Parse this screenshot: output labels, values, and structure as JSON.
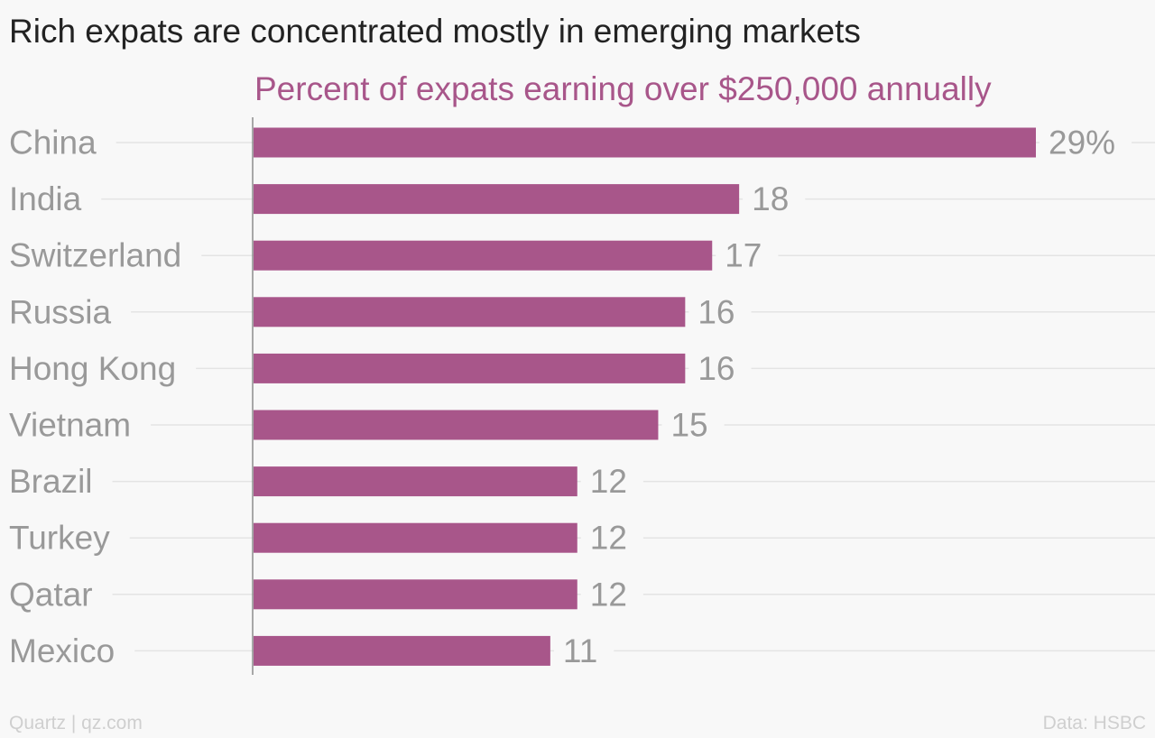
{
  "chart_data": {
    "type": "bar",
    "orientation": "horizontal",
    "title": "Rich expats are concentrated mostly in emerging markets",
    "subtitle": "Percent of expats earning over $250,000 annually",
    "categories": [
      "China",
      "India",
      "Switzerland",
      "Russia",
      "Hong Kong",
      "Vietnam",
      "Brazil",
      "Turkey",
      "Qatar",
      "Mexico"
    ],
    "values": [
      29,
      18,
      17,
      16,
      16,
      15,
      12,
      12,
      12,
      11
    ],
    "value_labels": [
      "29%",
      "18",
      "17",
      "16",
      "16",
      "15",
      "12",
      "12",
      "12",
      "11"
    ],
    "unit": "%",
    "xlim": [
      0,
      29
    ],
    "grid": true,
    "bar_color": "#a8568a",
    "subtitle_color": "#a8568a",
    "label_color": "#999999"
  },
  "footer": {
    "source": "Quartz | qz.com",
    "data_credit": "Data: HSBC"
  }
}
